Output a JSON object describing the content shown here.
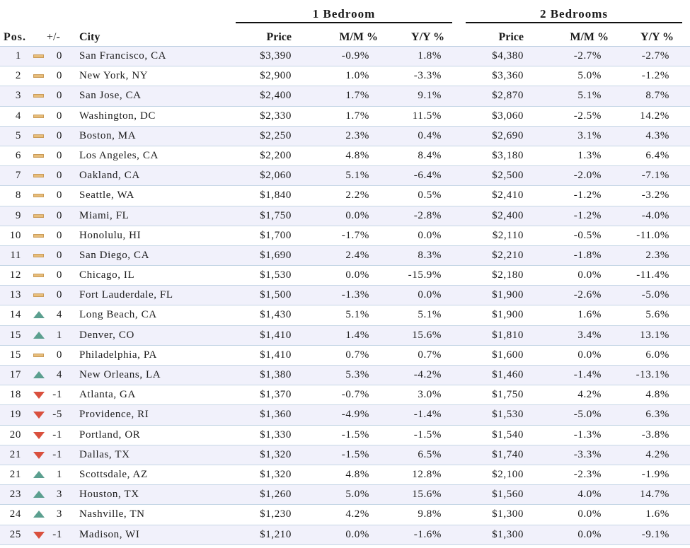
{
  "groups": {
    "one_bedroom": "1 Bedroom",
    "two_bedrooms": "2 Bedrooms"
  },
  "headers": {
    "pos": "Pos.",
    "change": "+/-",
    "city": "City",
    "price1": "Price",
    "mm1": "M/M %",
    "yy1": "Y/Y %",
    "price2": "Price",
    "mm2": "M/M %",
    "yy2": "Y/Y %"
  },
  "trend_colors": {
    "same": "#e7bd7a",
    "up": "#5b9f8f",
    "down": "#d9503e"
  },
  "rows": [
    {
      "pos": "1",
      "trend": "same",
      "chg": "0",
      "city": "San Francisco, CA",
      "p1": "$3,390",
      "m1": "-0.9%",
      "y1": "1.8%",
      "p2": "$4,380",
      "m2": "-2.7%",
      "y2": "-2.7%"
    },
    {
      "pos": "2",
      "trend": "same",
      "chg": "0",
      "city": "New York, NY",
      "p1": "$2,900",
      "m1": "1.0%",
      "y1": "-3.3%",
      "p2": "$3,360",
      "m2": "5.0%",
      "y2": "-1.2%"
    },
    {
      "pos": "3",
      "trend": "same",
      "chg": "0",
      "city": "San Jose, CA",
      "p1": "$2,400",
      "m1": "1.7%",
      "y1": "9.1%",
      "p2": "$2,870",
      "m2": "5.1%",
      "y2": "8.7%"
    },
    {
      "pos": "4",
      "trend": "same",
      "chg": "0",
      "city": "Washington, DC",
      "p1": "$2,330",
      "m1": "1.7%",
      "y1": "11.5%",
      "p2": "$3,060",
      "m2": "-2.5%",
      "y2": "14.2%"
    },
    {
      "pos": "5",
      "trend": "same",
      "chg": "0",
      "city": "Boston, MA",
      "p1": "$2,250",
      "m1": "2.3%",
      "y1": "0.4%",
      "p2": "$2,690",
      "m2": "3.1%",
      "y2": "4.3%"
    },
    {
      "pos": "6",
      "trend": "same",
      "chg": "0",
      "city": "Los Angeles, CA",
      "p1": "$2,200",
      "m1": "4.8%",
      "y1": "8.4%",
      "p2": "$3,180",
      "m2": "1.3%",
      "y2": "6.4%"
    },
    {
      "pos": "7",
      "trend": "same",
      "chg": "0",
      "city": "Oakland, CA",
      "p1": "$2,060",
      "m1": "5.1%",
      "y1": "-6.4%",
      "p2": "$2,500",
      "m2": "-2.0%",
      "y2": "-7.1%"
    },
    {
      "pos": "8",
      "trend": "same",
      "chg": "0",
      "city": "Seattle, WA",
      "p1": "$1,840",
      "m1": "2.2%",
      "y1": "0.5%",
      "p2": "$2,410",
      "m2": "-1.2%",
      "y2": "-3.2%"
    },
    {
      "pos": "9",
      "trend": "same",
      "chg": "0",
      "city": "Miami, FL",
      "p1": "$1,750",
      "m1": "0.0%",
      "y1": "-2.8%",
      "p2": "$2,400",
      "m2": "-1.2%",
      "y2": "-4.0%"
    },
    {
      "pos": "10",
      "trend": "same",
      "chg": "0",
      "city": "Honolulu, HI",
      "p1": "$1,700",
      "m1": "-1.7%",
      "y1": "0.0%",
      "p2": "$2,110",
      "m2": "-0.5%",
      "y2": "-11.0%"
    },
    {
      "pos": "11",
      "trend": "same",
      "chg": "0",
      "city": "San Diego, CA",
      "p1": "$1,690",
      "m1": "2.4%",
      "y1": "8.3%",
      "p2": "$2,210",
      "m2": "-1.8%",
      "y2": "2.3%"
    },
    {
      "pos": "12",
      "trend": "same",
      "chg": "0",
      "city": "Chicago, IL",
      "p1": "$1,530",
      "m1": "0.0%",
      "y1": "-15.9%",
      "p2": "$2,180",
      "m2": "0.0%",
      "y2": "-11.4%"
    },
    {
      "pos": "13",
      "trend": "same",
      "chg": "0",
      "city": "Fort Lauderdale, FL",
      "p1": "$1,500",
      "m1": "-1.3%",
      "y1": "0.0%",
      "p2": "$1,900",
      "m2": "-2.6%",
      "y2": "-5.0%"
    },
    {
      "pos": "14",
      "trend": "up",
      "chg": "4",
      "city": "Long Beach, CA",
      "p1": "$1,430",
      "m1": "5.1%",
      "y1": "5.1%",
      "p2": "$1,900",
      "m2": "1.6%",
      "y2": "5.6%"
    },
    {
      "pos": "15",
      "trend": "up",
      "chg": "1",
      "city": "Denver, CO",
      "p1": "$1,410",
      "m1": "1.4%",
      "y1": "15.6%",
      "p2": "$1,810",
      "m2": "3.4%",
      "y2": "13.1%"
    },
    {
      "pos": "15",
      "trend": "same",
      "chg": "0",
      "city": "Philadelphia, PA",
      "p1": "$1,410",
      "m1": "0.7%",
      "y1": "0.7%",
      "p2": "$1,600",
      "m2": "0.0%",
      "y2": "6.0%"
    },
    {
      "pos": "17",
      "trend": "up",
      "chg": "4",
      "city": "New Orleans, LA",
      "p1": "$1,380",
      "m1": "5.3%",
      "y1": "-4.2%",
      "p2": "$1,460",
      "m2": "-1.4%",
      "y2": "-13.1%"
    },
    {
      "pos": "18",
      "trend": "down",
      "chg": "-1",
      "city": "Atlanta, GA",
      "p1": "$1,370",
      "m1": "-0.7%",
      "y1": "3.0%",
      "p2": "$1,750",
      "m2": "4.2%",
      "y2": "4.8%"
    },
    {
      "pos": "19",
      "trend": "down",
      "chg": "-5",
      "city": "Providence, RI",
      "p1": "$1,360",
      "m1": "-4.9%",
      "y1": "-1.4%",
      "p2": "$1,530",
      "m2": "-5.0%",
      "y2": "6.3%"
    },
    {
      "pos": "20",
      "trend": "down",
      "chg": "-1",
      "city": "Portland, OR",
      "p1": "$1,330",
      "m1": "-1.5%",
      "y1": "-1.5%",
      "p2": "$1,540",
      "m2": "-1.3%",
      "y2": "-3.8%"
    },
    {
      "pos": "21",
      "trend": "down",
      "chg": "-1",
      "city": "Dallas, TX",
      "p1": "$1,320",
      "m1": "-1.5%",
      "y1": "6.5%",
      "p2": "$1,740",
      "m2": "-3.3%",
      "y2": "4.2%"
    },
    {
      "pos": "21",
      "trend": "up",
      "chg": "1",
      "city": "Scottsdale, AZ",
      "p1": "$1,320",
      "m1": "4.8%",
      "y1": "12.8%",
      "p2": "$2,100",
      "m2": "-2.3%",
      "y2": "-1.9%"
    },
    {
      "pos": "23",
      "trend": "up",
      "chg": "3",
      "city": "Houston, TX",
      "p1": "$1,260",
      "m1": "5.0%",
      "y1": "15.6%",
      "p2": "$1,560",
      "m2": "4.0%",
      "y2": "14.7%"
    },
    {
      "pos": "24",
      "trend": "up",
      "chg": "3",
      "city": "Nashville, TN",
      "p1": "$1,230",
      "m1": "4.2%",
      "y1": "9.8%",
      "p2": "$1,300",
      "m2": "0.0%",
      "y2": "1.6%"
    },
    {
      "pos": "25",
      "trend": "down",
      "chg": "-1",
      "city": "Madison, WI",
      "p1": "$1,210",
      "m1": "0.0%",
      "y1": "-1.6%",
      "p2": "$1,300",
      "m2": "0.0%",
      "y2": "-9.1%"
    }
  ]
}
